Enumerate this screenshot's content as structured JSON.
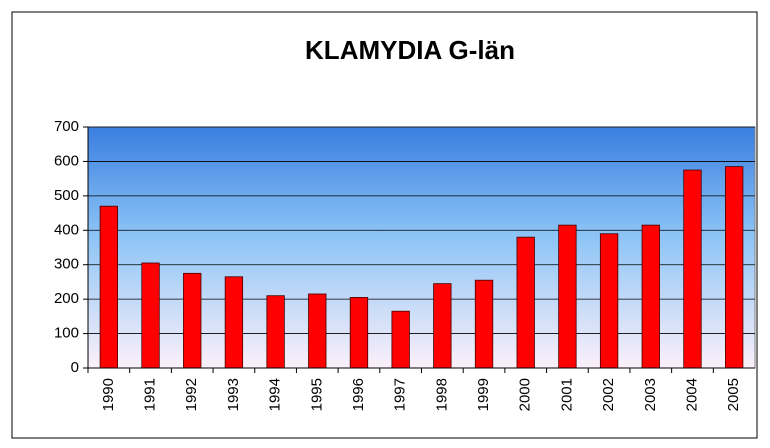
{
  "chart_data": {
    "type": "bar",
    "title": "KLAMYDIA G-län",
    "categories": [
      "1990",
      "1991",
      "1992",
      "1993",
      "1994",
      "1995",
      "1996",
      "1997",
      "1998",
      "1999",
      "2000",
      "2001",
      "2002",
      "2003",
      "2004",
      "2005"
    ],
    "values": [
      470,
      305,
      275,
      265,
      210,
      215,
      205,
      165,
      245,
      255,
      380,
      415,
      390,
      415,
      575,
      585
    ],
    "color": "#ff0000",
    "ylim": [
      0,
      700
    ],
    "yticks": [
      0,
      100,
      200,
      300,
      400,
      500,
      600,
      700
    ],
    "grid": true
  }
}
